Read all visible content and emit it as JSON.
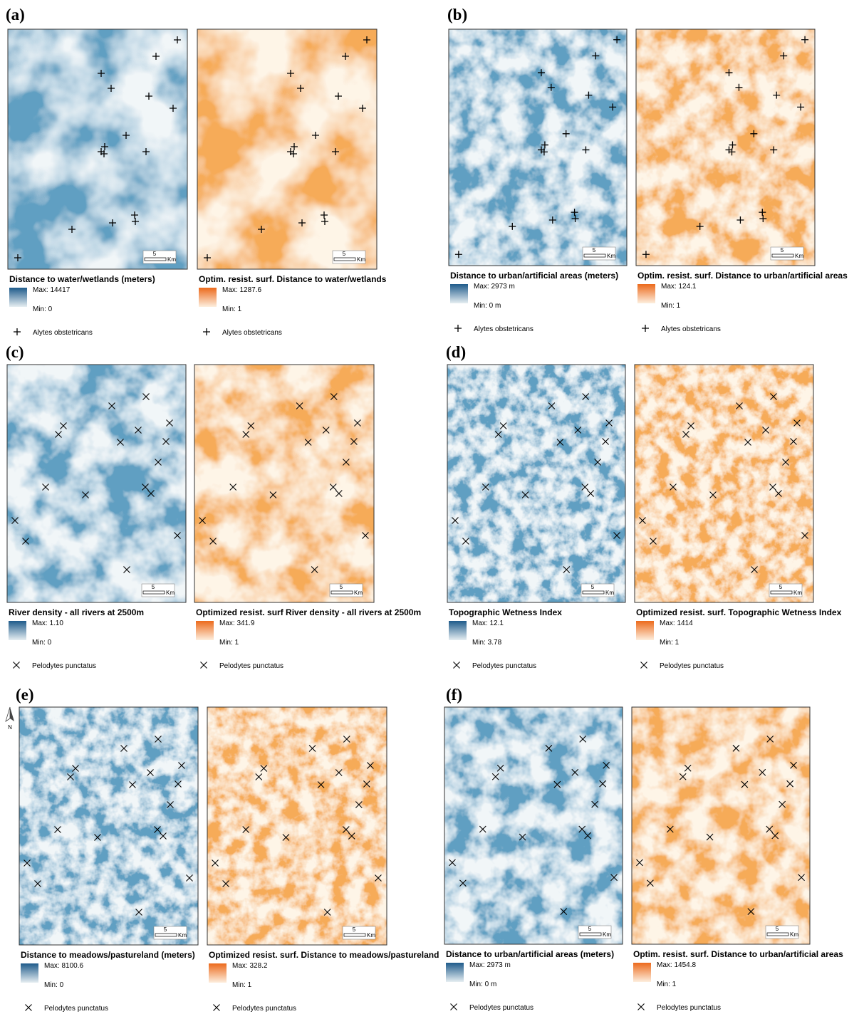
{
  "north": "N",
  "scale_label": "5",
  "scale_unit": "Km",
  "panels": [
    {
      "label": "(a)",
      "maps": [
        {
          "legend_title": "Distance to water/wetlands (meters)",
          "max": "Max: 14417",
          "min": "Min: 0",
          "species": "Alytes obstetricans"
        },
        {
          "legend_title": "Optim. resist. surf. Distance to water/wetlands",
          "max": "Max: 1287.6",
          "min": "Min: 1",
          "species": "Alytes obstetricans"
        }
      ]
    },
    {
      "label": "(b)",
      "maps": [
        {
          "legend_title": "Distance to urban/artificial areas (meters)",
          "max": "Max: 2973 m",
          "min": "Min: 0 m",
          "species": "Alytes obstetricans"
        },
        {
          "legend_title": "Optim. resist. surf. Distance to urban/artificial areas",
          "max": "Max: 124.1",
          "min": "Min: 1",
          "species": "Alytes obstetricans"
        }
      ]
    },
    {
      "label": "(c)",
      "maps": [
        {
          "legend_title": "River density - all rivers at 2500m",
          "max": "Max: 1.10",
          "min": "Min: 0",
          "species": "Pelodytes punctatus"
        },
        {
          "legend_title": "Optimized resist. surf River density - all rivers at 2500m",
          "max": "Max: 341.9",
          "min": "Min: 1",
          "species": "Pelodytes punctatus"
        }
      ]
    },
    {
      "label": "(d)",
      "maps": [
        {
          "legend_title": "Topographic Wetness Index",
          "max": "Max: 12.1",
          "min": "Min: 3.78",
          "species": "Pelodytes punctatus"
        },
        {
          "legend_title": "Optimized resist. surf. Topographic Wetness Index",
          "max": "Max: 1414",
          "min": "Min: 1",
          "species": "Pelodytes punctatus"
        }
      ]
    },
    {
      "label": "(e)",
      "maps": [
        {
          "legend_title": "Distance to meadows/pastureland (meters)",
          "max": "Max: 8100.6",
          "min": "Min: 0",
          "species": "Pelodytes punctatus"
        },
        {
          "legend_title": "Optimized resist. surf. Distance to meadows/pastureland",
          "max": "Max: 328.2",
          "min": "Min: 1",
          "species": "Pelodytes punctatus"
        }
      ]
    },
    {
      "label": "(f)",
      "maps": [
        {
          "legend_title": "Distance to urban/artificial areas (meters)",
          "max": "Max: 2973 m",
          "min": "Min: 0 m",
          "species": "Pelodytes punctatus"
        },
        {
          "legend_title": "Optim. resist. surf. Distance to urban/artificial areas",
          "max": "Max: 1454.8",
          "min": "Min: 1",
          "species": "Pelodytes punctatus"
        }
      ]
    }
  ]
}
